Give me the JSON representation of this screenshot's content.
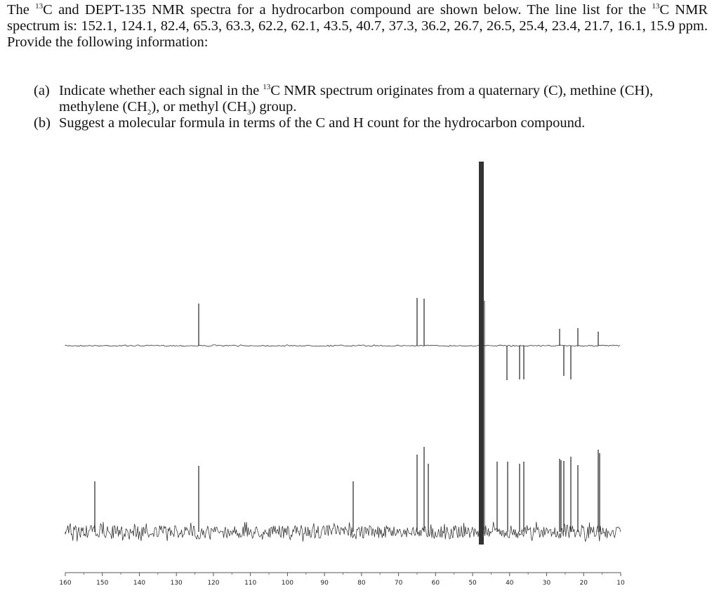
{
  "question": {
    "intro": [
      {
        "text": "The "
      },
      {
        "sup": "13"
      },
      {
        "text": "C and DEPT-135 NMR spectra for a hydrocarbon compound are shown below.  The line list for the "
      },
      {
        "sup": "13"
      },
      {
        "text": "C NMR spectrum is: 152.1, 124.1, 82.4, 65.3, 63.3, 62.2, 62.1, 43.5, 40.7, 37.3, 36.2, 26.7, 26.5, 25.4, 23.4, 21.7, 16.1, 15.9 ppm.  Provide the following information:"
      }
    ],
    "items": [
      {
        "label": "(a)",
        "parts": [
          {
            "text": "Indicate whether each signal in the "
          },
          {
            "sup": "13"
          },
          {
            "text": "C NMR spectrum originates from a quaternary (C), methine (CH), methylene (CH"
          },
          {
            "sub": "2"
          },
          {
            "text": "), or methyl (CH"
          },
          {
            "sub": "3"
          },
          {
            "text": ") group."
          }
        ]
      },
      {
        "label": "(b)",
        "parts": [
          {
            "text": "Suggest a molecular formula in terms of the C and H count for the hydrocarbon compound."
          }
        ]
      }
    ]
  },
  "spectrum": {
    "axis": {
      "ticks": [
        160,
        150,
        140,
        130,
        120,
        110,
        100,
        90,
        80,
        70,
        60,
        50,
        40,
        30,
        20,
        10
      ]
    }
  }
}
